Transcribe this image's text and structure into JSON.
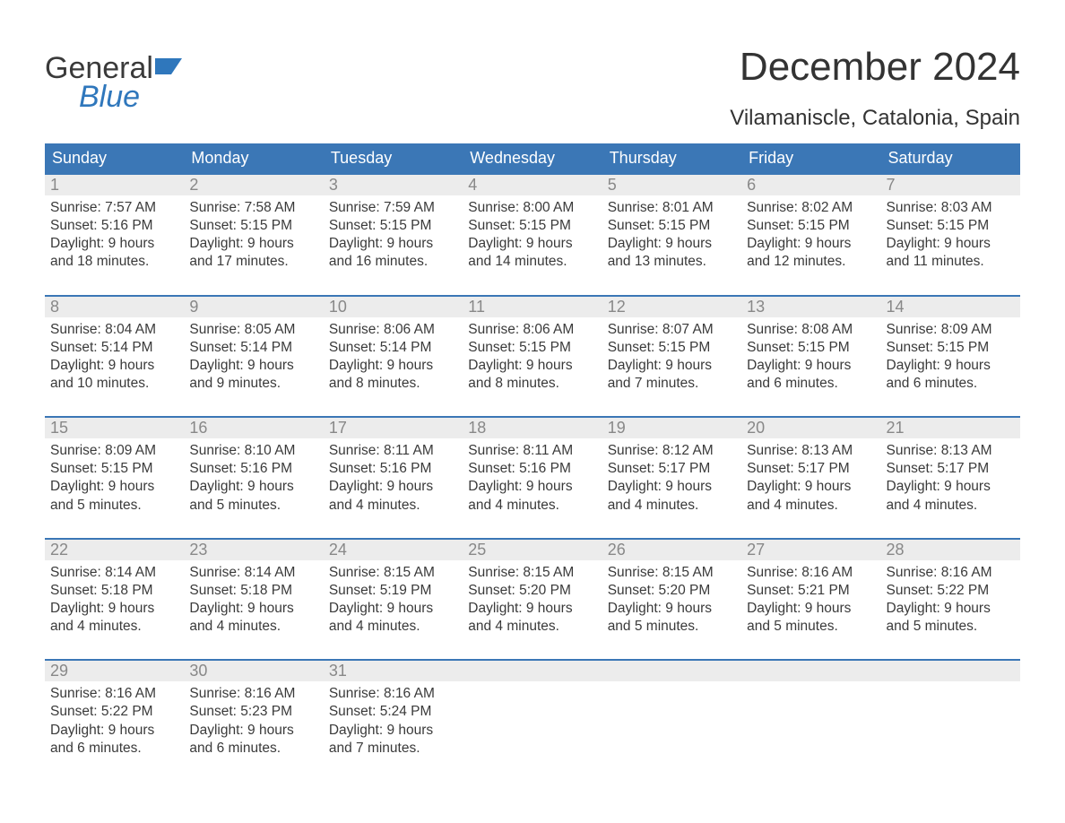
{
  "logo": {
    "word1": "General",
    "word2": "Blue",
    "accent_color": "#2f77bc",
    "text_color": "#3a3a3a"
  },
  "header": {
    "title": "December 2024",
    "subtitle": "Vilamaniscle, Catalonia, Spain"
  },
  "calendar": {
    "header_bg": "#3b77b6",
    "header_fg": "#ffffff",
    "week_border_color": "#3b77b6",
    "daynum_bg": "#ececec",
    "daynum_fg": "#888888",
    "text_color": "#3a3a3a",
    "day_names": [
      "Sunday",
      "Monday",
      "Tuesday",
      "Wednesday",
      "Thursday",
      "Friday",
      "Saturday"
    ],
    "weeks": [
      [
        {
          "n": "1",
          "sunrise": "Sunrise: 7:57 AM",
          "sunset": "Sunset: 5:16 PM",
          "dl1": "Daylight: 9 hours",
          "dl2": "and 18 minutes."
        },
        {
          "n": "2",
          "sunrise": "Sunrise: 7:58 AM",
          "sunset": "Sunset: 5:15 PM",
          "dl1": "Daylight: 9 hours",
          "dl2": "and 17 minutes."
        },
        {
          "n": "3",
          "sunrise": "Sunrise: 7:59 AM",
          "sunset": "Sunset: 5:15 PM",
          "dl1": "Daylight: 9 hours",
          "dl2": "and 16 minutes."
        },
        {
          "n": "4",
          "sunrise": "Sunrise: 8:00 AM",
          "sunset": "Sunset: 5:15 PM",
          "dl1": "Daylight: 9 hours",
          "dl2": "and 14 minutes."
        },
        {
          "n": "5",
          "sunrise": "Sunrise: 8:01 AM",
          "sunset": "Sunset: 5:15 PM",
          "dl1": "Daylight: 9 hours",
          "dl2": "and 13 minutes."
        },
        {
          "n": "6",
          "sunrise": "Sunrise: 8:02 AM",
          "sunset": "Sunset: 5:15 PM",
          "dl1": "Daylight: 9 hours",
          "dl2": "and 12 minutes."
        },
        {
          "n": "7",
          "sunrise": "Sunrise: 8:03 AM",
          "sunset": "Sunset: 5:15 PM",
          "dl1": "Daylight: 9 hours",
          "dl2": "and 11 minutes."
        }
      ],
      [
        {
          "n": "8",
          "sunrise": "Sunrise: 8:04 AM",
          "sunset": "Sunset: 5:14 PM",
          "dl1": "Daylight: 9 hours",
          "dl2": "and 10 minutes."
        },
        {
          "n": "9",
          "sunrise": "Sunrise: 8:05 AM",
          "sunset": "Sunset: 5:14 PM",
          "dl1": "Daylight: 9 hours",
          "dl2": "and 9 minutes."
        },
        {
          "n": "10",
          "sunrise": "Sunrise: 8:06 AM",
          "sunset": "Sunset: 5:14 PM",
          "dl1": "Daylight: 9 hours",
          "dl2": "and 8 minutes."
        },
        {
          "n": "11",
          "sunrise": "Sunrise: 8:06 AM",
          "sunset": "Sunset: 5:15 PM",
          "dl1": "Daylight: 9 hours",
          "dl2": "and 8 minutes."
        },
        {
          "n": "12",
          "sunrise": "Sunrise: 8:07 AM",
          "sunset": "Sunset: 5:15 PM",
          "dl1": "Daylight: 9 hours",
          "dl2": "and 7 minutes."
        },
        {
          "n": "13",
          "sunrise": "Sunrise: 8:08 AM",
          "sunset": "Sunset: 5:15 PM",
          "dl1": "Daylight: 9 hours",
          "dl2": "and 6 minutes."
        },
        {
          "n": "14",
          "sunrise": "Sunrise: 8:09 AM",
          "sunset": "Sunset: 5:15 PM",
          "dl1": "Daylight: 9 hours",
          "dl2": "and 6 minutes."
        }
      ],
      [
        {
          "n": "15",
          "sunrise": "Sunrise: 8:09 AM",
          "sunset": "Sunset: 5:15 PM",
          "dl1": "Daylight: 9 hours",
          "dl2": "and 5 minutes."
        },
        {
          "n": "16",
          "sunrise": "Sunrise: 8:10 AM",
          "sunset": "Sunset: 5:16 PM",
          "dl1": "Daylight: 9 hours",
          "dl2": "and 5 minutes."
        },
        {
          "n": "17",
          "sunrise": "Sunrise: 8:11 AM",
          "sunset": "Sunset: 5:16 PM",
          "dl1": "Daylight: 9 hours",
          "dl2": "and 4 minutes."
        },
        {
          "n": "18",
          "sunrise": "Sunrise: 8:11 AM",
          "sunset": "Sunset: 5:16 PM",
          "dl1": "Daylight: 9 hours",
          "dl2": "and 4 minutes."
        },
        {
          "n": "19",
          "sunrise": "Sunrise: 8:12 AM",
          "sunset": "Sunset: 5:17 PM",
          "dl1": "Daylight: 9 hours",
          "dl2": "and 4 minutes."
        },
        {
          "n": "20",
          "sunrise": "Sunrise: 8:13 AM",
          "sunset": "Sunset: 5:17 PM",
          "dl1": "Daylight: 9 hours",
          "dl2": "and 4 minutes."
        },
        {
          "n": "21",
          "sunrise": "Sunrise: 8:13 AM",
          "sunset": "Sunset: 5:17 PM",
          "dl1": "Daylight: 9 hours",
          "dl2": "and 4 minutes."
        }
      ],
      [
        {
          "n": "22",
          "sunrise": "Sunrise: 8:14 AM",
          "sunset": "Sunset: 5:18 PM",
          "dl1": "Daylight: 9 hours",
          "dl2": "and 4 minutes."
        },
        {
          "n": "23",
          "sunrise": "Sunrise: 8:14 AM",
          "sunset": "Sunset: 5:18 PM",
          "dl1": "Daylight: 9 hours",
          "dl2": "and 4 minutes."
        },
        {
          "n": "24",
          "sunrise": "Sunrise: 8:15 AM",
          "sunset": "Sunset: 5:19 PM",
          "dl1": "Daylight: 9 hours",
          "dl2": "and 4 minutes."
        },
        {
          "n": "25",
          "sunrise": "Sunrise: 8:15 AM",
          "sunset": "Sunset: 5:20 PM",
          "dl1": "Daylight: 9 hours",
          "dl2": "and 4 minutes."
        },
        {
          "n": "26",
          "sunrise": "Sunrise: 8:15 AM",
          "sunset": "Sunset: 5:20 PM",
          "dl1": "Daylight: 9 hours",
          "dl2": "and 5 minutes."
        },
        {
          "n": "27",
          "sunrise": "Sunrise: 8:16 AM",
          "sunset": "Sunset: 5:21 PM",
          "dl1": "Daylight: 9 hours",
          "dl2": "and 5 minutes."
        },
        {
          "n": "28",
          "sunrise": "Sunrise: 8:16 AM",
          "sunset": "Sunset: 5:22 PM",
          "dl1": "Daylight: 9 hours",
          "dl2": "and 5 minutes."
        }
      ],
      [
        {
          "n": "29",
          "sunrise": "Sunrise: 8:16 AM",
          "sunset": "Sunset: 5:22 PM",
          "dl1": "Daylight: 9 hours",
          "dl2": "and 6 minutes."
        },
        {
          "n": "30",
          "sunrise": "Sunrise: 8:16 AM",
          "sunset": "Sunset: 5:23 PM",
          "dl1": "Daylight: 9 hours",
          "dl2": "and 6 minutes."
        },
        {
          "n": "31",
          "sunrise": "Sunrise: 8:16 AM",
          "sunset": "Sunset: 5:24 PM",
          "dl1": "Daylight: 9 hours",
          "dl2": "and 7 minutes."
        },
        {
          "n": "",
          "sunrise": "",
          "sunset": "",
          "dl1": "",
          "dl2": "",
          "empty": true
        },
        {
          "n": "",
          "sunrise": "",
          "sunset": "",
          "dl1": "",
          "dl2": "",
          "empty": true
        },
        {
          "n": "",
          "sunrise": "",
          "sunset": "",
          "dl1": "",
          "dl2": "",
          "empty": true
        },
        {
          "n": "",
          "sunrise": "",
          "sunset": "",
          "dl1": "",
          "dl2": "",
          "empty": true
        }
      ]
    ]
  }
}
